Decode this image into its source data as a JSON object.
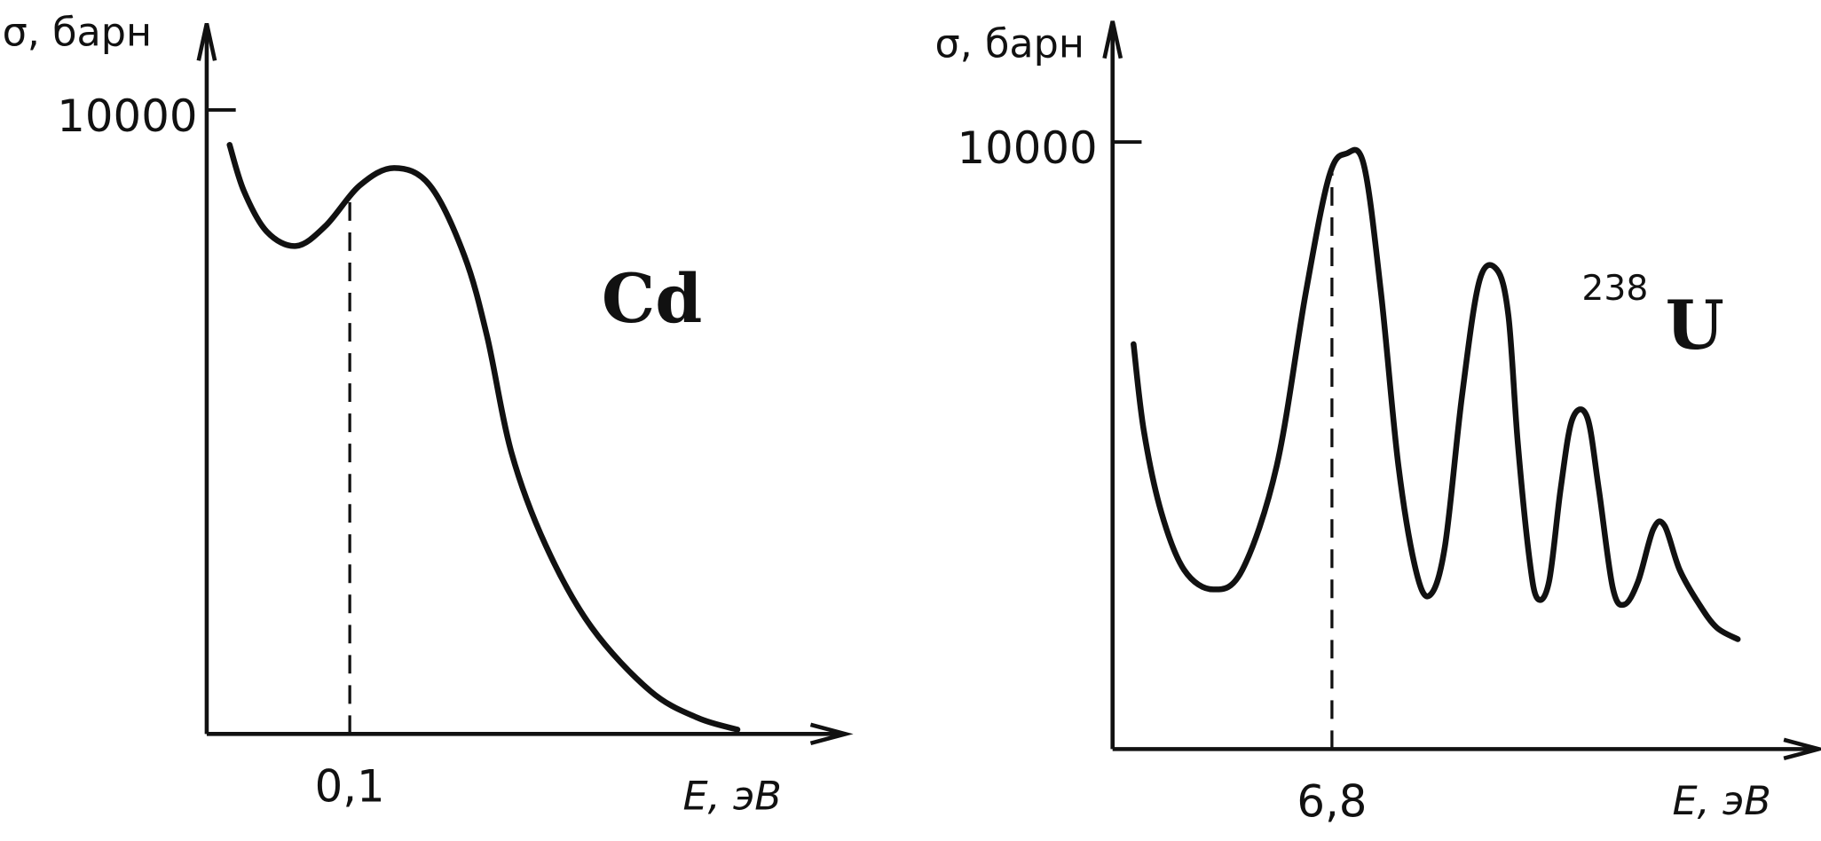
{
  "chart_data": [
    {
      "type": "line",
      "y_label": "σ, барн",
      "x_label": "E, эВ",
      "annotation": "Cd",
      "x": [
        0.016,
        0.026,
        0.042,
        0.0625,
        0.083,
        0.107,
        0.131,
        0.156,
        0.18,
        0.196,
        0.213,
        0.237,
        0.269,
        0.31,
        0.343,
        0.371
      ],
      "series": [
        {
          "color": "#111111",
          "values": [
            9440,
            8700,
            8050,
            7820,
            8140,
            8790,
            9070,
            8790,
            7670,
            6370,
            4510,
            3020,
            1710,
            690,
            260,
            70
          ]
        }
      ],
      "xlim": [
        0,
        0.44
      ],
      "ylim": [
        0,
        11200
      ],
      "xticks": [
        {
          "value": 0.1,
          "label": "0,1"
        }
      ],
      "yticks": [
        {
          "value": 10000,
          "label": "10000"
        }
      ]
    },
    {
      "type": "line",
      "y_label": "σ, барн",
      "x_label": "E, эВ",
      "annotation": {
        "mass_number": "238",
        "symbol": "U"
      },
      "x": [
        0.65,
        0.97,
        1.51,
        2.22,
        3.12,
        4.02,
        5.09,
        5.99,
        6.71,
        7.25,
        7.79,
        8.32,
        8.86,
        9.4,
        9.83,
        10.3,
        10.83,
        11.37,
        11.91,
        12.27,
        12.56,
        12.92,
        13.17,
        13.53,
        13.89,
        14.25,
        14.71,
        15.07,
        15.5,
        15.86,
        16.29,
        16.76,
        17.11,
        17.58,
        18.19,
        18.73,
        19.38
      ],
      "series": [
        {
          "color": "#111111",
          "values": [
            6670,
            5240,
            3900,
            2950,
            2630,
            2950,
            4670,
            7520,
            9430,
            9810,
            9620,
            7520,
            4670,
            2950,
            2530,
            3330,
            5810,
            7710,
            7900,
            7140,
            5050,
            3140,
            2480,
            2760,
            4290,
            5430,
            5470,
            4290,
            2670,
            2380,
            2760,
            3620,
            3680,
            2950,
            2380,
            2000,
            1810
          ]
        }
      ],
      "xlim": [
        0,
        21.6
      ],
      "ylim": [
        0,
        11800
      ],
      "xticks": [
        {
          "value": 6.8,
          "label": "6,8"
        }
      ],
      "yticks": [
        {
          "value": 10000,
          "label": "10000"
        }
      ]
    }
  ]
}
